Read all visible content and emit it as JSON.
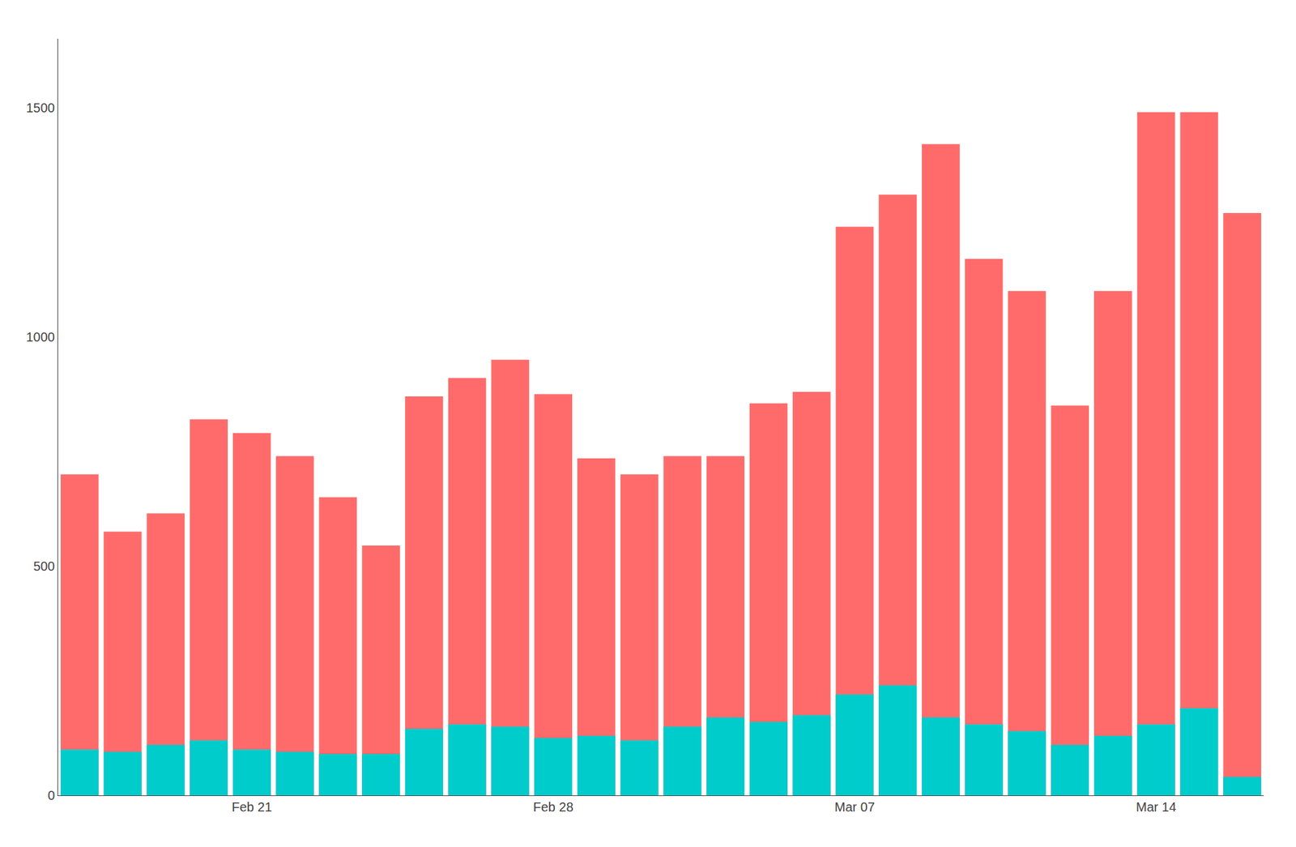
{
  "chart_data": {
    "type": "bar",
    "categories": [
      null,
      null,
      null,
      null,
      "Feb 21",
      null,
      null,
      null,
      null,
      null,
      null,
      "Feb 28",
      null,
      null,
      null,
      null,
      null,
      null,
      "Mar 07",
      null,
      null,
      null,
      null,
      null,
      null,
      "Mar 14",
      null,
      null
    ],
    "series": [
      {
        "color": "#FF6B6B",
        "values": [
          700,
          575,
          615,
          820,
          790,
          740,
          650,
          545,
          870,
          910,
          950,
          875,
          735,
          700,
          740,
          740,
          855,
          880,
          1240,
          1310,
          1420,
          1170,
          1100,
          850,
          1100,
          1490,
          1490,
          1270
        ]
      },
      {
        "color": "#00CCCC",
        "values": [
          100,
          95,
          110,
          120,
          100,
          95,
          90,
          90,
          145,
          155,
          150,
          125,
          130,
          120,
          150,
          170,
          160,
          175,
          220,
          240,
          170,
          155,
          140,
          110,
          130,
          155,
          190,
          40
        ]
      }
    ],
    "stacked": false,
    "ylim": [
      0,
      1650
    ],
    "yticks": [
      0,
      500,
      1000,
      1500
    ],
    "grid": false
  }
}
